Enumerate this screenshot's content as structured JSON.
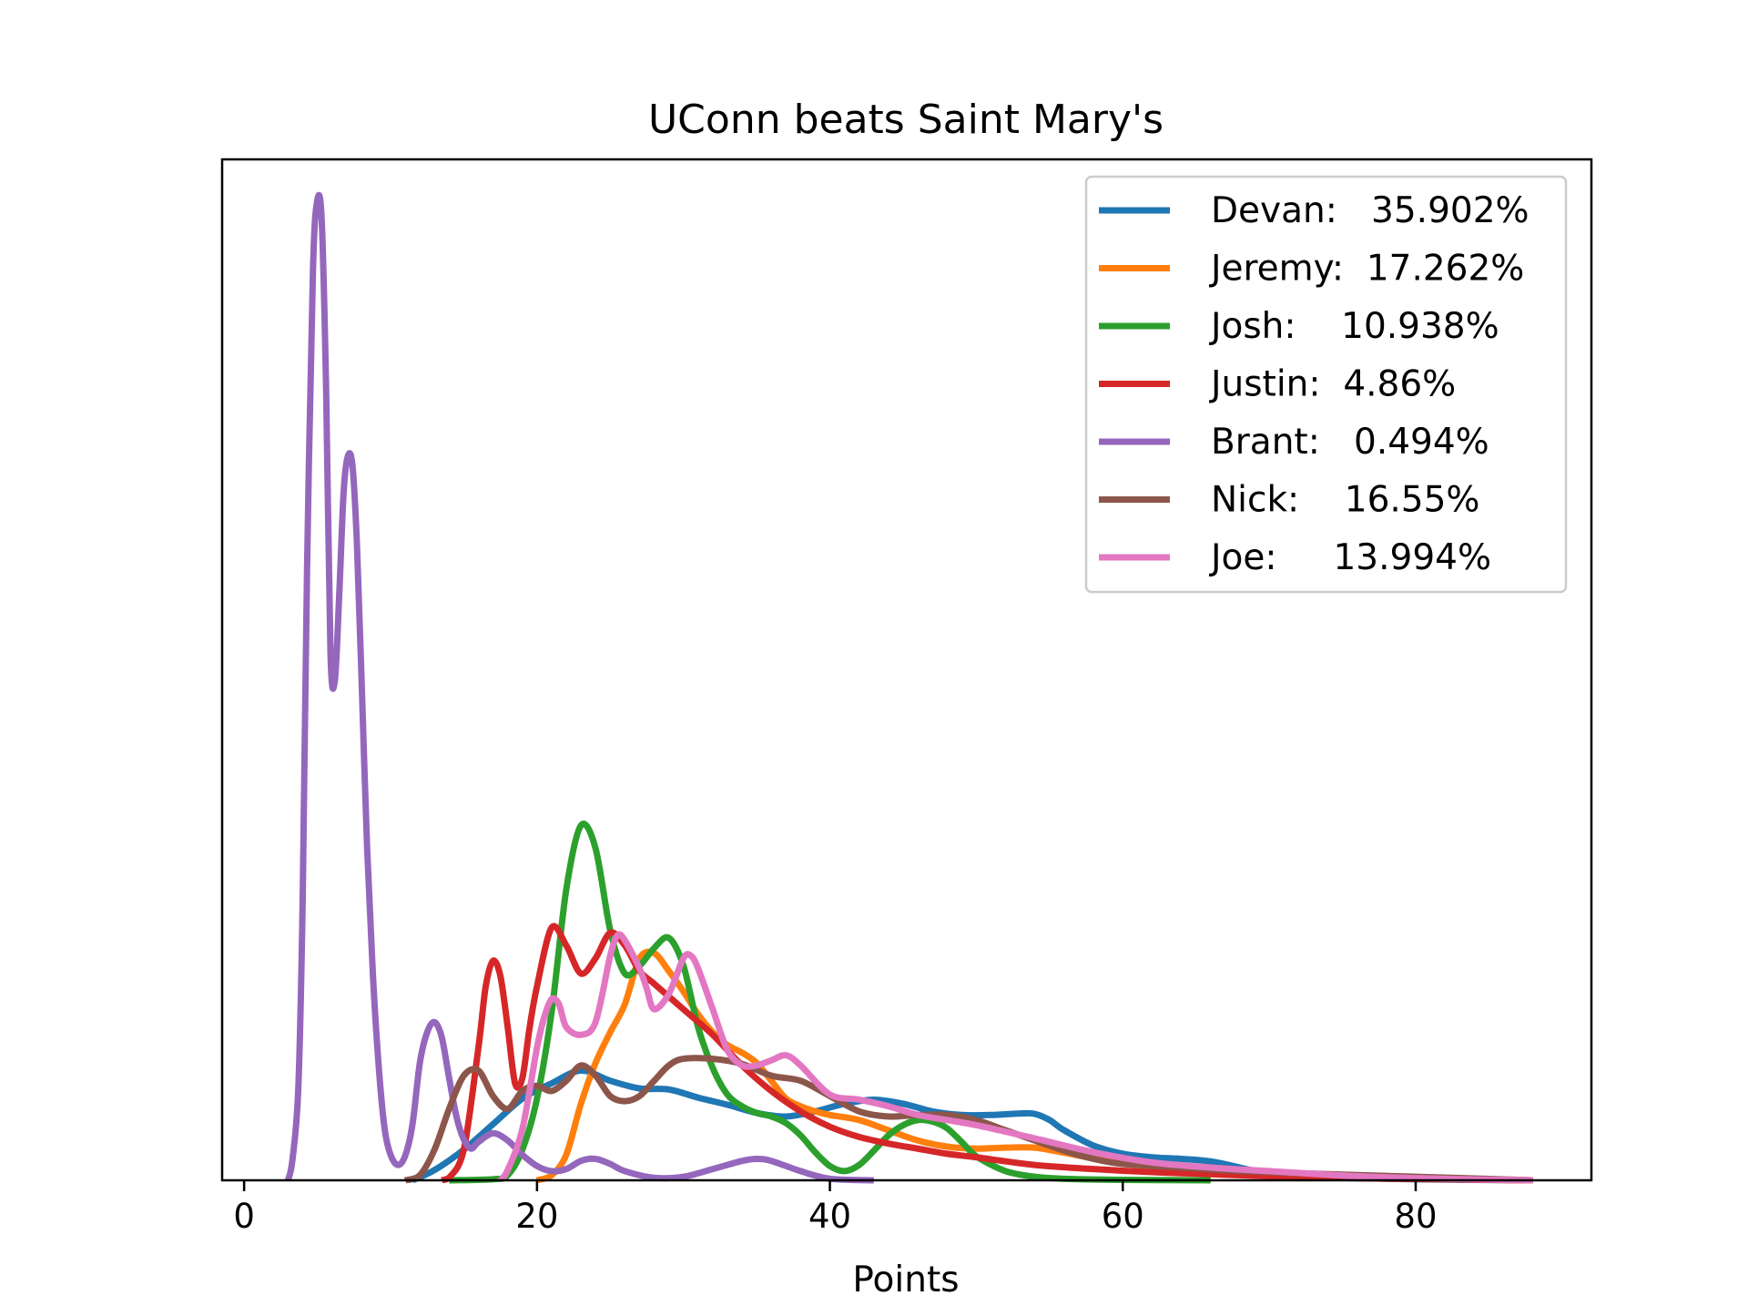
{
  "chart_data": {
    "type": "line",
    "title": "UConn beats Saint Mary's",
    "xlabel": "Points",
    "ylabel": "",
    "xlim": [
      -1.5,
      92
    ],
    "ylim": [
      0,
      0.2
    ],
    "xticks": [
      0,
      20,
      40,
      60,
      80
    ],
    "xtick_labels": [
      "0",
      "20",
      "40",
      "60",
      "80"
    ],
    "yticks_shown": false,
    "grid": false,
    "legend_position": "top-right",
    "series": [
      {
        "name": "Devan:   35.902%",
        "color": "#1f77b4",
        "x": [
          11.5,
          13,
          15,
          17,
          19,
          21,
          23,
          25,
          27,
          29,
          31,
          33,
          35,
          37,
          39,
          41,
          43,
          45,
          47,
          49,
          51,
          53,
          54,
          55,
          56,
          58,
          60,
          62,
          64,
          66,
          68,
          70,
          72,
          75,
          80,
          88
        ],
        "y": [
          0.0,
          0.002,
          0.006,
          0.011,
          0.016,
          0.019,
          0.0215,
          0.0195,
          0.018,
          0.0178,
          0.0162,
          0.0148,
          0.0132,
          0.0125,
          0.0135,
          0.015,
          0.0158,
          0.015,
          0.0135,
          0.0128,
          0.0128,
          0.0131,
          0.013,
          0.0118,
          0.0098,
          0.0068,
          0.0052,
          0.0045,
          0.0042,
          0.0037,
          0.0025,
          0.0012,
          0.0008,
          0.0005,
          0.0002,
          0.0
        ]
      },
      {
        "name": "Jeremy:  17.262%",
        "color": "#ff7f0e",
        "x": [
          20,
          21,
          22,
          23,
          24,
          25,
          26,
          27,
          28,
          29,
          30,
          31,
          32,
          33,
          34,
          35,
          36,
          37,
          38,
          39,
          40,
          42,
          44,
          46,
          48,
          50,
          52,
          54,
          56,
          58,
          60,
          62,
          64,
          66,
          70,
          80,
          88
        ],
        "y": [
          0.0,
          0.001,
          0.005,
          0.015,
          0.023,
          0.029,
          0.0345,
          0.0435,
          0.0445,
          0.041,
          0.037,
          0.0325,
          0.029,
          0.0265,
          0.025,
          0.023,
          0.0195,
          0.016,
          0.0145,
          0.0135,
          0.0128,
          0.0118,
          0.0098,
          0.0078,
          0.0066,
          0.0062,
          0.0064,
          0.0064,
          0.0054,
          0.0043,
          0.0035,
          0.0028,
          0.0022,
          0.0016,
          0.0009,
          0.0003,
          0.0
        ]
      },
      {
        "name": "Josh:    10.938%",
        "color": "#2ca02c",
        "x": [
          14,
          17,
          18,
          19,
          20,
          21,
          22,
          23,
          24,
          25,
          26,
          27,
          28,
          29,
          30,
          31,
          32,
          33,
          34,
          35,
          36,
          37,
          38,
          39,
          40,
          41,
          42,
          43,
          44,
          45,
          46,
          47,
          48,
          49,
          50,
          52,
          54,
          56,
          60,
          66
        ],
        "y": [
          0.0,
          0.0002,
          0.001,
          0.006,
          0.016,
          0.033,
          0.057,
          0.0695,
          0.065,
          0.049,
          0.0405,
          0.042,
          0.0455,
          0.0475,
          0.042,
          0.03,
          0.022,
          0.0168,
          0.0145,
          0.0132,
          0.0125,
          0.0112,
          0.0088,
          0.0055,
          0.0028,
          0.0018,
          0.003,
          0.0058,
          0.0088,
          0.0108,
          0.0118,
          0.0115,
          0.0102,
          0.0075,
          0.0047,
          0.0018,
          0.0007,
          0.0003,
          0.0001,
          0.0
        ]
      },
      {
        "name": "Justin:  4.86%",
        "color": "#d62728",
        "x": [
          13.5,
          14,
          15,
          16,
          16.5,
          17,
          17.5,
          18,
          18.5,
          19,
          19.5,
          20,
          21,
          22,
          23,
          24,
          25,
          26,
          27,
          28,
          29,
          30,
          32,
          34,
          36,
          38,
          40,
          42,
          44,
          46,
          48,
          50,
          54,
          58,
          62,
          66,
          70,
          76,
          82,
          88
        ],
        "y": [
          0.0,
          0.0005,
          0.006,
          0.026,
          0.038,
          0.043,
          0.04,
          0.03,
          0.019,
          0.02,
          0.03,
          0.038,
          0.0495,
          0.046,
          0.0405,
          0.0435,
          0.0485,
          0.046,
          0.041,
          0.0385,
          0.036,
          0.0335,
          0.0285,
          0.0225,
          0.0175,
          0.0135,
          0.0105,
          0.0085,
          0.0072,
          0.0062,
          0.0052,
          0.0045,
          0.003,
          0.0022,
          0.0016,
          0.0012,
          0.0008,
          0.0004,
          0.0002,
          0.0
        ]
      },
      {
        "name": "Brant:   0.494%",
        "color": "#9467bd",
        "x": [
          3,
          3.3,
          3.7,
          4.0,
          4.3,
          4.7,
          5.0,
          5.3,
          5.6,
          5.9,
          6.2,
          6.5,
          6.8,
          7.1,
          7.4,
          7.7,
          8.0,
          8.4,
          8.8,
          9.2,
          9.6,
          10.0,
          10.5,
          11.0,
          11.5,
          12.0,
          12.5,
          13.0,
          13.5,
          14.0,
          14.5,
          15.0,
          15.5,
          16.0,
          17.0,
          18.0,
          19.0,
          20.0,
          21.0,
          22.0,
          23.0,
          24.0,
          25.0,
          26.0,
          28.0,
          30.0,
          32.0,
          34.0,
          35.0,
          36.0,
          38.0,
          40.0,
          43.0
        ],
        "y": [
          0.0,
          0.004,
          0.018,
          0.055,
          0.12,
          0.178,
          0.192,
          0.188,
          0.155,
          0.103,
          0.098,
          0.115,
          0.135,
          0.142,
          0.14,
          0.125,
          0.1,
          0.065,
          0.04,
          0.022,
          0.01,
          0.005,
          0.003,
          0.0048,
          0.011,
          0.023,
          0.029,
          0.031,
          0.028,
          0.02,
          0.0125,
          0.008,
          0.0062,
          0.0075,
          0.0092,
          0.0078,
          0.005,
          0.0028,
          0.0018,
          0.0022,
          0.0038,
          0.0042,
          0.0032,
          0.0018,
          0.0005,
          0.0007,
          0.0022,
          0.0038,
          0.0042,
          0.0038,
          0.0018,
          0.0003,
          0.0
        ]
      },
      {
        "name": "Nick:    16.55%",
        "color": "#8c564b",
        "x": [
          11,
          12,
          13,
          14,
          15,
          16,
          17,
          18,
          19,
          20,
          21,
          22,
          23,
          24,
          25,
          26,
          27,
          28,
          29,
          30,
          32,
          34,
          36,
          38,
          40,
          42,
          44,
          46,
          48,
          50,
          52,
          54,
          56,
          58,
          60,
          64,
          68,
          74,
          80,
          88
        ],
        "y": [
          0.0,
          0.001,
          0.006,
          0.014,
          0.0205,
          0.0215,
          0.0165,
          0.014,
          0.0175,
          0.0185,
          0.0175,
          0.0195,
          0.0225,
          0.0205,
          0.0165,
          0.0155,
          0.0165,
          0.0195,
          0.0225,
          0.0238,
          0.0238,
          0.0228,
          0.0205,
          0.0195,
          0.0165,
          0.0135,
          0.0125,
          0.0128,
          0.0128,
          0.0118,
          0.0098,
          0.0078,
          0.0058,
          0.0042,
          0.0032,
          0.0025,
          0.0018,
          0.0012,
          0.0007,
          0.0
        ]
      },
      {
        "name": "Joe:     13.994%",
        "color": "#e377c2",
        "x": [
          17.5,
          18,
          19,
          20,
          20.5,
          21,
          21.5,
          22,
          23,
          24,
          25,
          25.5,
          26,
          27,
          27.5,
          28,
          29,
          30,
          30.5,
          31,
          32,
          33,
          34,
          35,
          36,
          37,
          38,
          40,
          42,
          44,
          46,
          48,
          50,
          54,
          58,
          62,
          66,
          70,
          76,
          82,
          88
        ],
        "y": [
          0.0,
          0.002,
          0.01,
          0.026,
          0.032,
          0.0355,
          0.0345,
          0.03,
          0.0285,
          0.031,
          0.044,
          0.048,
          0.047,
          0.0415,
          0.0375,
          0.0335,
          0.0365,
          0.0435,
          0.044,
          0.0415,
          0.0335,
          0.0255,
          0.0225,
          0.0225,
          0.0235,
          0.0245,
          0.0225,
          0.0168,
          0.0158,
          0.0145,
          0.0128,
          0.0118,
          0.0108,
          0.0082,
          0.0055,
          0.0035,
          0.0025,
          0.0018,
          0.0008,
          0.0003,
          0.0
        ]
      }
    ]
  }
}
